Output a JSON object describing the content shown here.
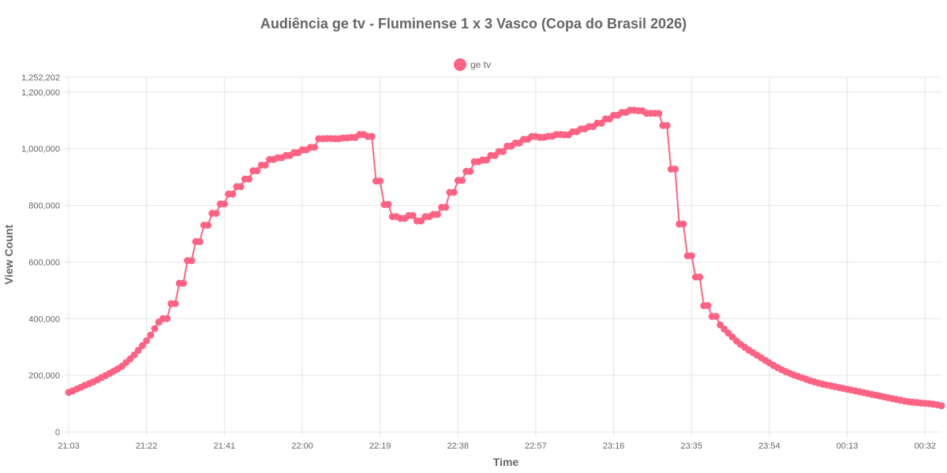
{
  "chart_data": {
    "type": "line",
    "title": "Audiência ge tv - Fluminense 1 x 3 Vasco (Copa do Brasil 2026)",
    "xlabel": "Time",
    "ylabel": "View Count",
    "x_ticks": [
      "21:03",
      "21:22",
      "21:41",
      "22:00",
      "22:19",
      "22:38",
      "22:57",
      "23:16",
      "23:35",
      "23:54",
      "00:13",
      "00:32"
    ],
    "y_ticks": [
      "0",
      "200,000",
      "400,000",
      "600,000",
      "800,000",
      "1,000,000",
      "1,200,000",
      "1,252,202"
    ],
    "ylim": [
      0,
      1252202
    ],
    "x_start": "21:03",
    "x_interval_minutes": 1,
    "grid": true,
    "legend_position": "top-center",
    "series": [
      {
        "name": "ge tv",
        "color": "#ff6384",
        "values": [
          140000,
          145000,
          152000,
          158000,
          165000,
          171000,
          177000,
          184000,
          192000,
          199000,
          207000,
          215000,
          223000,
          232000,
          245000,
          258000,
          272000,
          288000,
          305000,
          322000,
          342000,
          365000,
          388000,
          400000,
          400000,
          453000,
          453000,
          525000,
          525000,
          605000,
          605000,
          672000,
          672000,
          730000,
          730000,
          772000,
          772000,
          805000,
          805000,
          840000,
          840000,
          866000,
          866000,
          893000,
          893000,
          922000,
          922000,
          942000,
          942000,
          962000,
          962000,
          968000,
          968000,
          976000,
          976000,
          986000,
          986000,
          996000,
          996000,
          1005000,
          1005000,
          1035000,
          1035000,
          1036000,
          1036000,
          1035000,
          1035000,
          1038000,
          1038000,
          1040000,
          1040000,
          1050000,
          1050000,
          1043000,
          1043000,
          886000,
          886000,
          803000,
          803000,
          760000,
          760000,
          754000,
          754000,
          764000,
          764000,
          745000,
          745000,
          760000,
          760000,
          768000,
          768000,
          793000,
          793000,
          846000,
          846000,
          888000,
          888000,
          920000,
          920000,
          954000,
          954000,
          960000,
          960000,
          976000,
          976000,
          990000,
          990000,
          1009000,
          1009000,
          1020000,
          1020000,
          1033000,
          1033000,
          1043000,
          1043000,
          1040000,
          1040000,
          1044000,
          1044000,
          1050000,
          1050000,
          1049000,
          1049000,
          1060000,
          1060000,
          1070000,
          1070000,
          1078000,
          1078000,
          1090000,
          1090000,
          1105000,
          1105000,
          1118000,
          1118000,
          1128000,
          1128000,
          1136000,
          1136000,
          1134000,
          1134000,
          1125000,
          1125000,
          1125000,
          1125000,
          1082000,
          1082000,
          928000,
          928000,
          734000,
          734000,
          622000,
          622000,
          547000,
          547000,
          446000,
          446000,
          408000,
          408000,
          378000,
          363000,
          349000,
          335000,
          321000,
          309000,
          299000,
          289000,
          280000,
          271000,
          262000,
          253000,
          244000,
          235000,
          227000,
          220000,
          213000,
          207000,
          201000,
          196000,
          191000,
          186000,
          181000,
          177000,
          173000,
          169000,
          166000,
          163000,
          160000,
          157000,
          154000,
          151000,
          148000,
          145000,
          142000,
          139000,
          136000,
          133000,
          130000,
          127000,
          124000,
          121000,
          118000,
          115000,
          112000,
          109000,
          107000,
          105000,
          104000,
          102000,
          101000,
          100000,
          98000,
          96000,
          93000
        ]
      }
    ]
  }
}
